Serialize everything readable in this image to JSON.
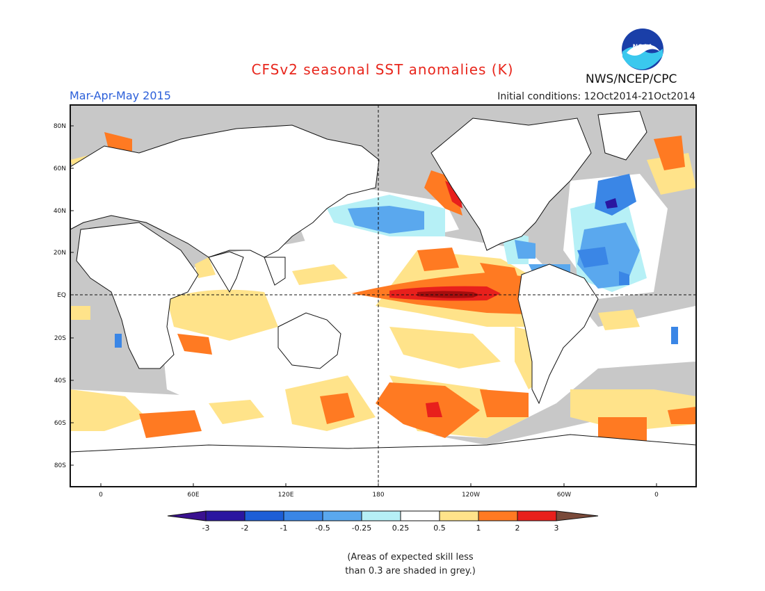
{
  "title": "CFSv2 seasonal SST anomalies (K)",
  "season": "Mar-Apr-May 2015",
  "initial_conditions": "Initial conditions: 12Oct2014-21Oct2014",
  "organization": "NWS/NCEP/CPC",
  "logo_text": "NOAA",
  "note_line1": "(Areas of expected skill less",
  "note_line2": "than 0.3 are shaded in grey.)",
  "lat_labels": [
    "80N",
    "60N",
    "40N",
    "20N",
    "EQ",
    "20S",
    "40S",
    "60S",
    "80S"
  ],
  "lon_labels": [
    "0",
    "60E",
    "120E",
    "180",
    "120W",
    "60W",
    "0"
  ],
  "colorbar": {
    "labels": [
      "-3",
      "-2",
      "-1",
      "-0.5",
      "-0.25",
      "0.25",
      "0.5",
      "1",
      "2",
      "3"
    ],
    "colors": [
      "#2a16a0",
      "#1d5ed6",
      "#3a86e6",
      "#5aa8ee",
      "#b6f0f6",
      "#ffffff",
      "#ffe38a",
      "#ff7a22",
      "#e8201c",
      "#a50d0d"
    ],
    "under_color": "#3a1190",
    "over_color": "#7a4a3a"
  },
  "colors": {
    "land": "#ffffff",
    "grey_skill": "#c8c8c8",
    "title": "#e8261c",
    "season": "#2b5fd9"
  }
}
